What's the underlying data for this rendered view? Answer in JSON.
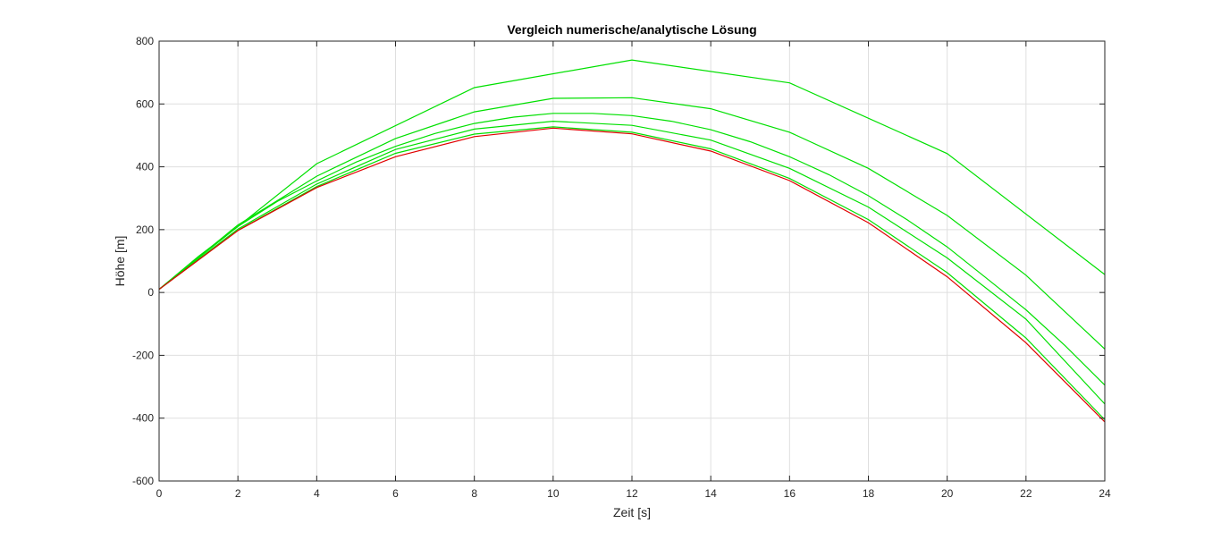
{
  "chart_data": {
    "type": "line",
    "title": "Vergleich numerische/analytische Lösung",
    "xlabel": "Zeit [s]",
    "ylabel": "Höhe [m]",
    "xlim": [
      0,
      24
    ],
    "ylim": [
      -600,
      800
    ],
    "xticks": [
      0,
      2,
      4,
      6,
      8,
      10,
      12,
      14,
      16,
      18,
      20,
      22,
      24
    ],
    "yticks": [
      -600,
      -400,
      -200,
      0,
      200,
      400,
      600,
      800
    ],
    "xtick_labels": [
      "0",
      "2",
      "4",
      "6",
      "8",
      "10",
      "12",
      "14",
      "16",
      "18",
      "20",
      "22",
      "24"
    ],
    "ytick_labels": [
      "-600",
      "-400",
      "-200",
      "0",
      "200",
      "400",
      "600",
      "800"
    ],
    "grid": true,
    "series": [
      {
        "color": "#00e000",
        "x": [
          0,
          4,
          8,
          12,
          16,
          20,
          24
        ],
        "y": [
          10,
          410,
          652,
          740,
          667,
          442,
          57
        ]
      },
      {
        "color": "#00e000",
        "x": [
          0,
          2,
          4,
          6,
          8,
          10,
          12,
          14,
          16,
          18,
          20,
          22,
          24
        ],
        "y": [
          10,
          215,
          370,
          490,
          575,
          618,
          620,
          585,
          510,
          395,
          245,
          55,
          -180
        ]
      },
      {
        "color": "#00e000",
        "x": [
          0,
          1,
          2,
          3,
          4,
          5,
          6,
          7,
          8,
          9,
          10,
          11,
          12,
          13,
          14,
          15,
          16,
          17,
          18,
          19,
          20,
          21,
          22,
          23,
          24
        ],
        "y": [
          10,
          115,
          210,
          290,
          355,
          415,
          465,
          506,
          538,
          558,
          570,
          570,
          563,
          545,
          518,
          480,
          432,
          375,
          308,
          230,
          145,
          45,
          -55,
          -170,
          -295
        ]
      },
      {
        "color": "#00e000",
        "x": [
          0,
          2,
          4,
          6,
          8,
          10,
          12,
          14,
          16,
          18,
          20,
          22,
          24
        ],
        "y": [
          10,
          202,
          345,
          455,
          520,
          545,
          532,
          485,
          395,
          272,
          110,
          -85,
          -355
        ]
      },
      {
        "color": "#00e000",
        "x": [
          0,
          2,
          4,
          6,
          8,
          10,
          12,
          14,
          16,
          18,
          20,
          22,
          24
        ],
        "y": [
          10,
          198,
          337,
          443,
          504,
          527,
          510,
          457,
          363,
          232,
          63,
          -145,
          -405
        ]
      },
      {
        "color": "#e00000",
        "x": [
          0,
          2,
          4,
          6,
          8,
          10,
          12,
          14,
          16,
          18,
          20,
          22,
          24
        ],
        "y": [
          10,
          197,
          334,
          432,
          496,
          523,
          505,
          450,
          356,
          222,
          50,
          -160,
          -412
        ]
      }
    ]
  }
}
